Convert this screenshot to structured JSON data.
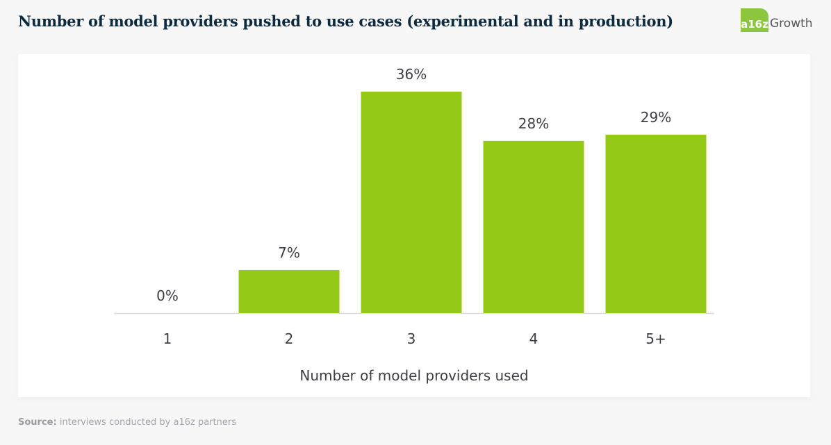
{
  "header": {
    "title": "Number of model providers pushed to use cases (experimental and in production)",
    "logo_mark": "a16z",
    "logo_text": "Growth"
  },
  "footer": {
    "source_label": "Source:",
    "source_text": " interviews conducted by a16z partners"
  },
  "colors": {
    "bar": "#94c918",
    "title": "#0d2a3f",
    "label": "#3d3d45"
  },
  "chart_data": {
    "type": "bar",
    "title": "Number of model providers pushed to use cases (experimental and in production)",
    "categories": [
      "1",
      "2",
      "3",
      "4",
      "5+"
    ],
    "values": [
      0,
      7,
      36,
      28,
      29
    ],
    "data_labels": [
      "0%",
      "7%",
      "36%",
      "28%",
      "29%"
    ],
    "xlabel": "Number of model providers used",
    "ylabel": "",
    "ylim": [
      0,
      36
    ],
    "grid": false,
    "legend": "none"
  }
}
